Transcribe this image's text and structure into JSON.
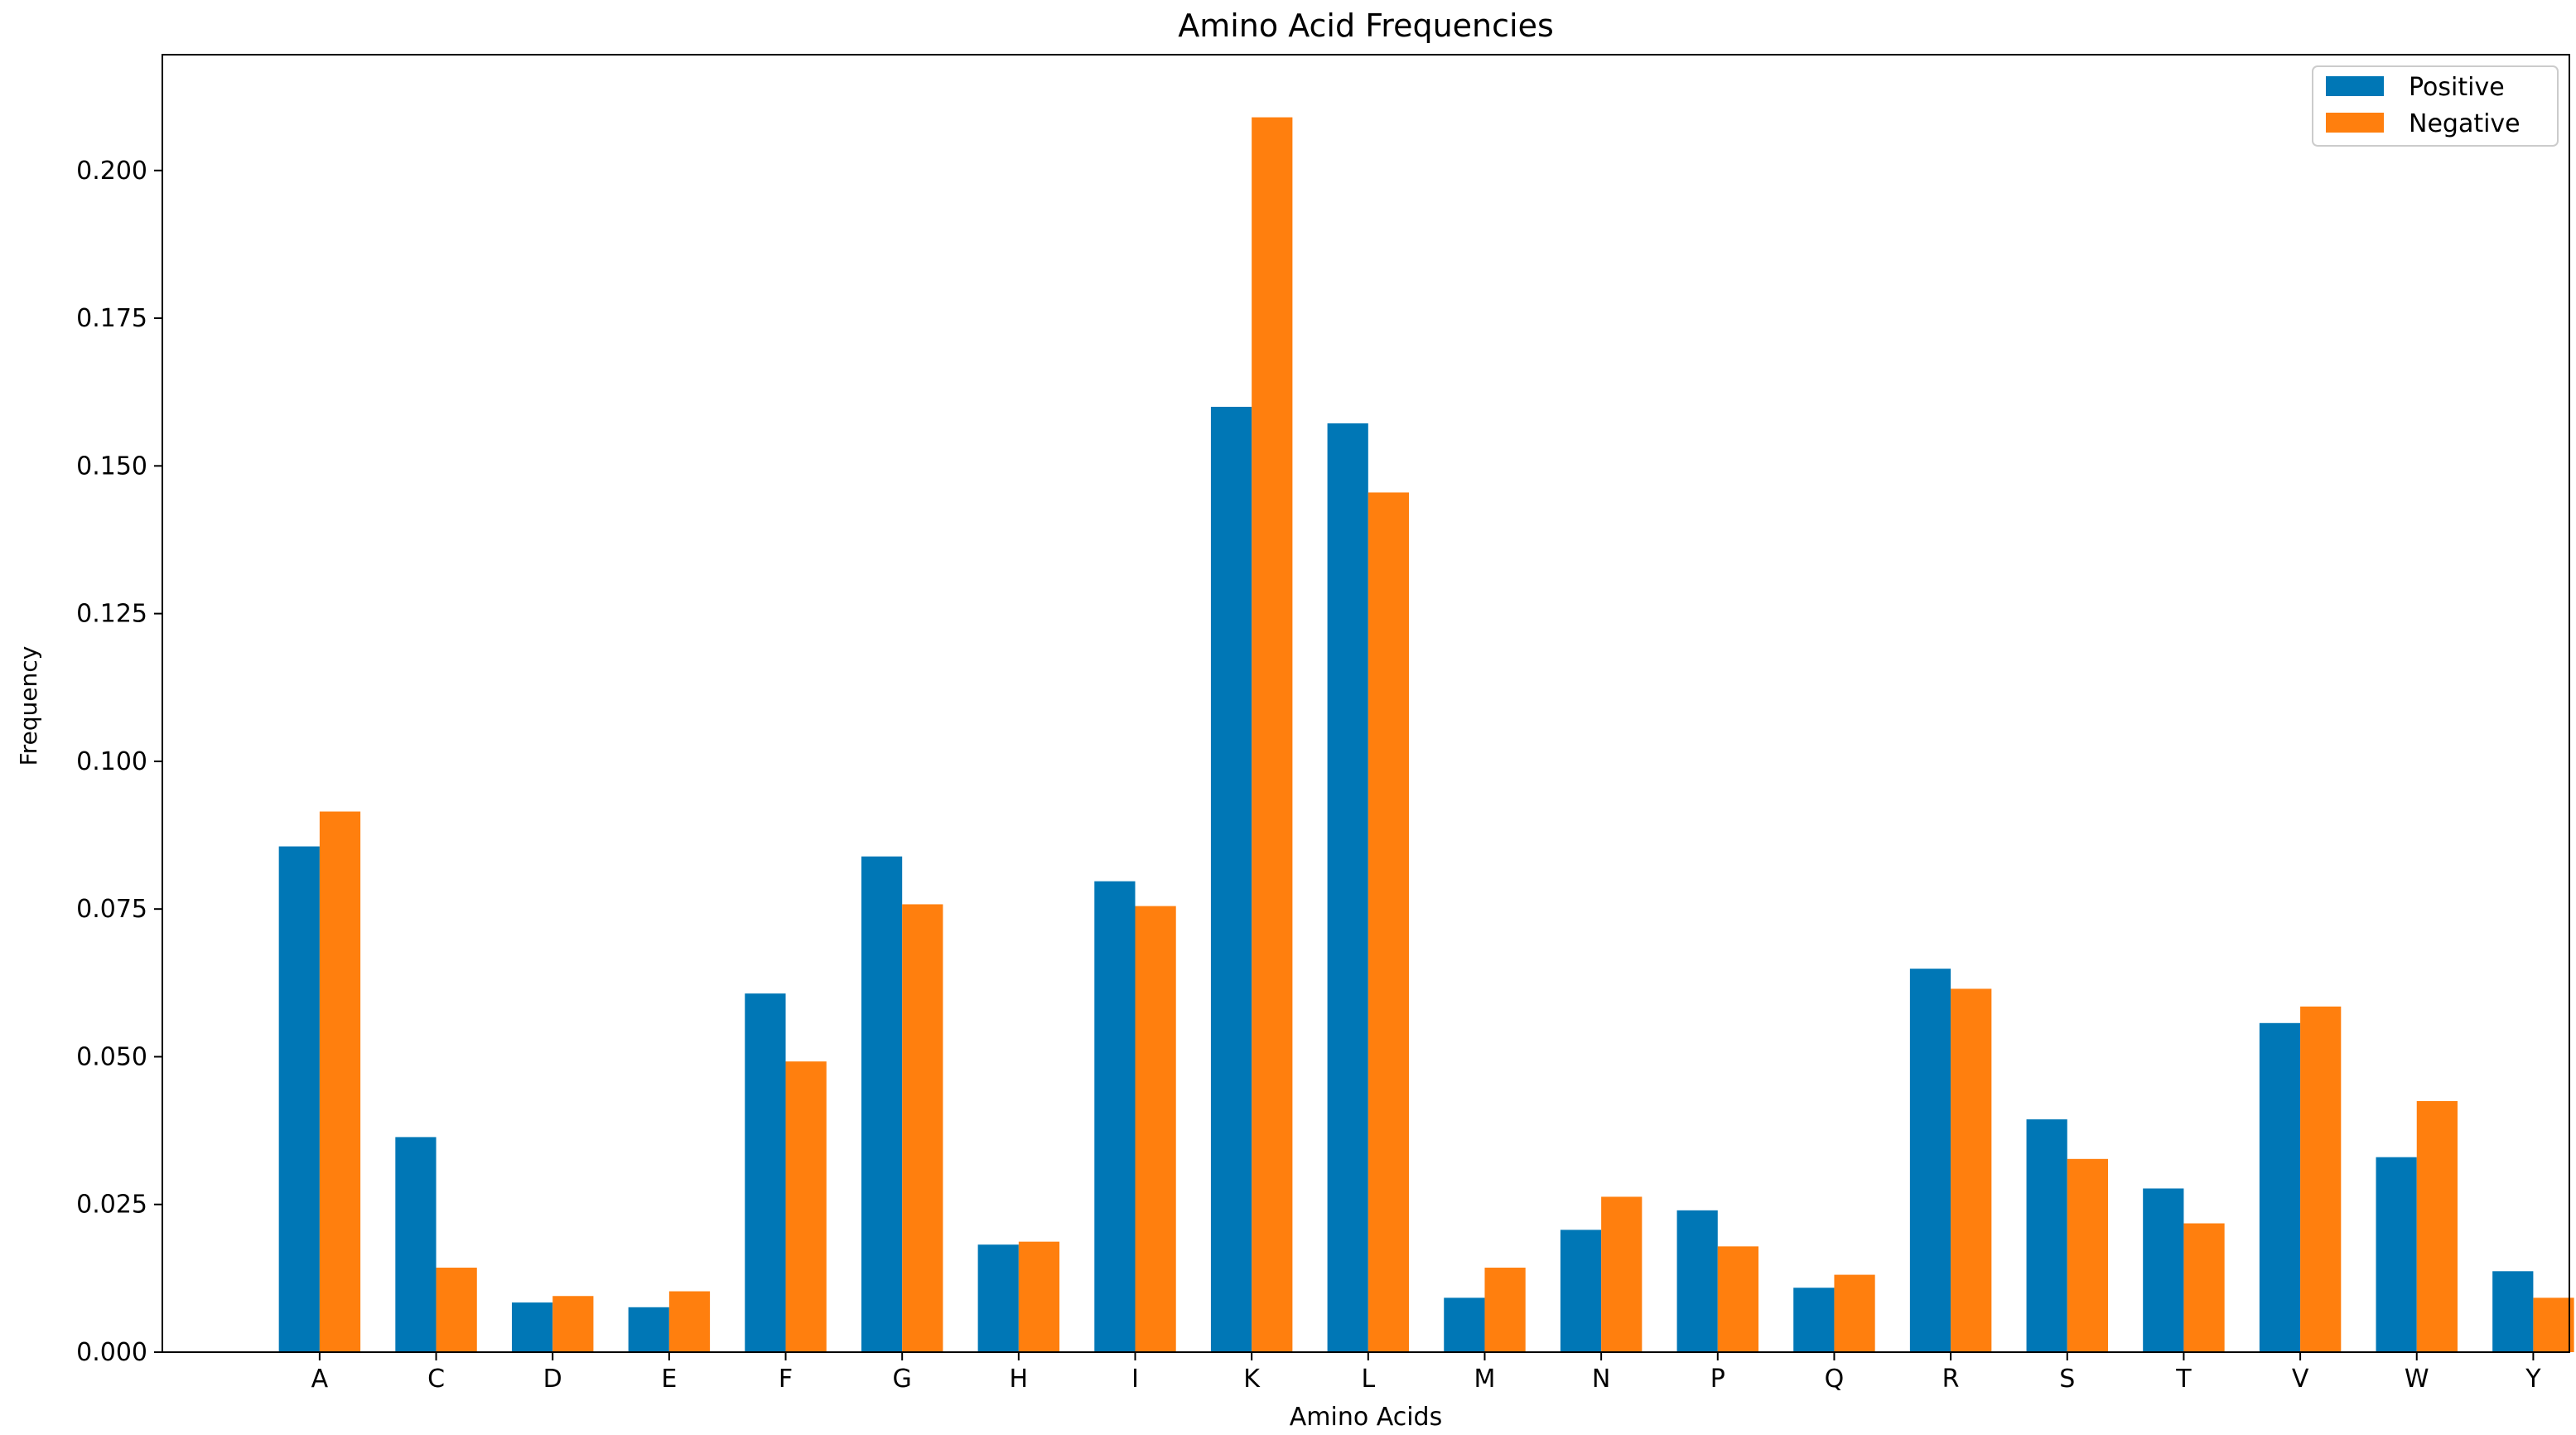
{
  "chart_data": {
    "type": "bar",
    "title": "Amino Acid Frequencies",
    "xlabel": "Amino Acids",
    "ylabel": "Frequency",
    "categories": [
      "A",
      "C",
      "D",
      "E",
      "F",
      "G",
      "H",
      "I",
      "K",
      "L",
      "M",
      "N",
      "P",
      "Q",
      "R",
      "S",
      "T",
      "V",
      "W",
      "Y"
    ],
    "series": [
      {
        "name": "Positive",
        "color": "#0077b6",
        "values": [
          0.0856,
          0.0364,
          0.0084,
          0.0076,
          0.0607,
          0.0839,
          0.0182,
          0.0797,
          0.16,
          0.1572,
          0.0092,
          0.0207,
          0.024,
          0.0109,
          0.0649,
          0.0394,
          0.0277,
          0.0557,
          0.033,
          0.0137
        ]
      },
      {
        "name": "Negative",
        "color": "#ff7f0e",
        "values": [
          0.0915,
          0.0143,
          0.0095,
          0.0103,
          0.0492,
          0.0758,
          0.0187,
          0.0755,
          0.209,
          0.1455,
          0.0143,
          0.0263,
          0.0179,
          0.0131,
          0.0615,
          0.0327,
          0.0218,
          0.0585,
          0.0425,
          0.0092
        ]
      }
    ],
    "yticks": [
      "0.000",
      "0.025",
      "0.050",
      "0.075",
      "0.100",
      "0.125",
      "0.150",
      "0.175",
      "0.200"
    ],
    "ylim": [
      0,
      0.2196
    ],
    "grid": false,
    "legend": "top-right"
  }
}
